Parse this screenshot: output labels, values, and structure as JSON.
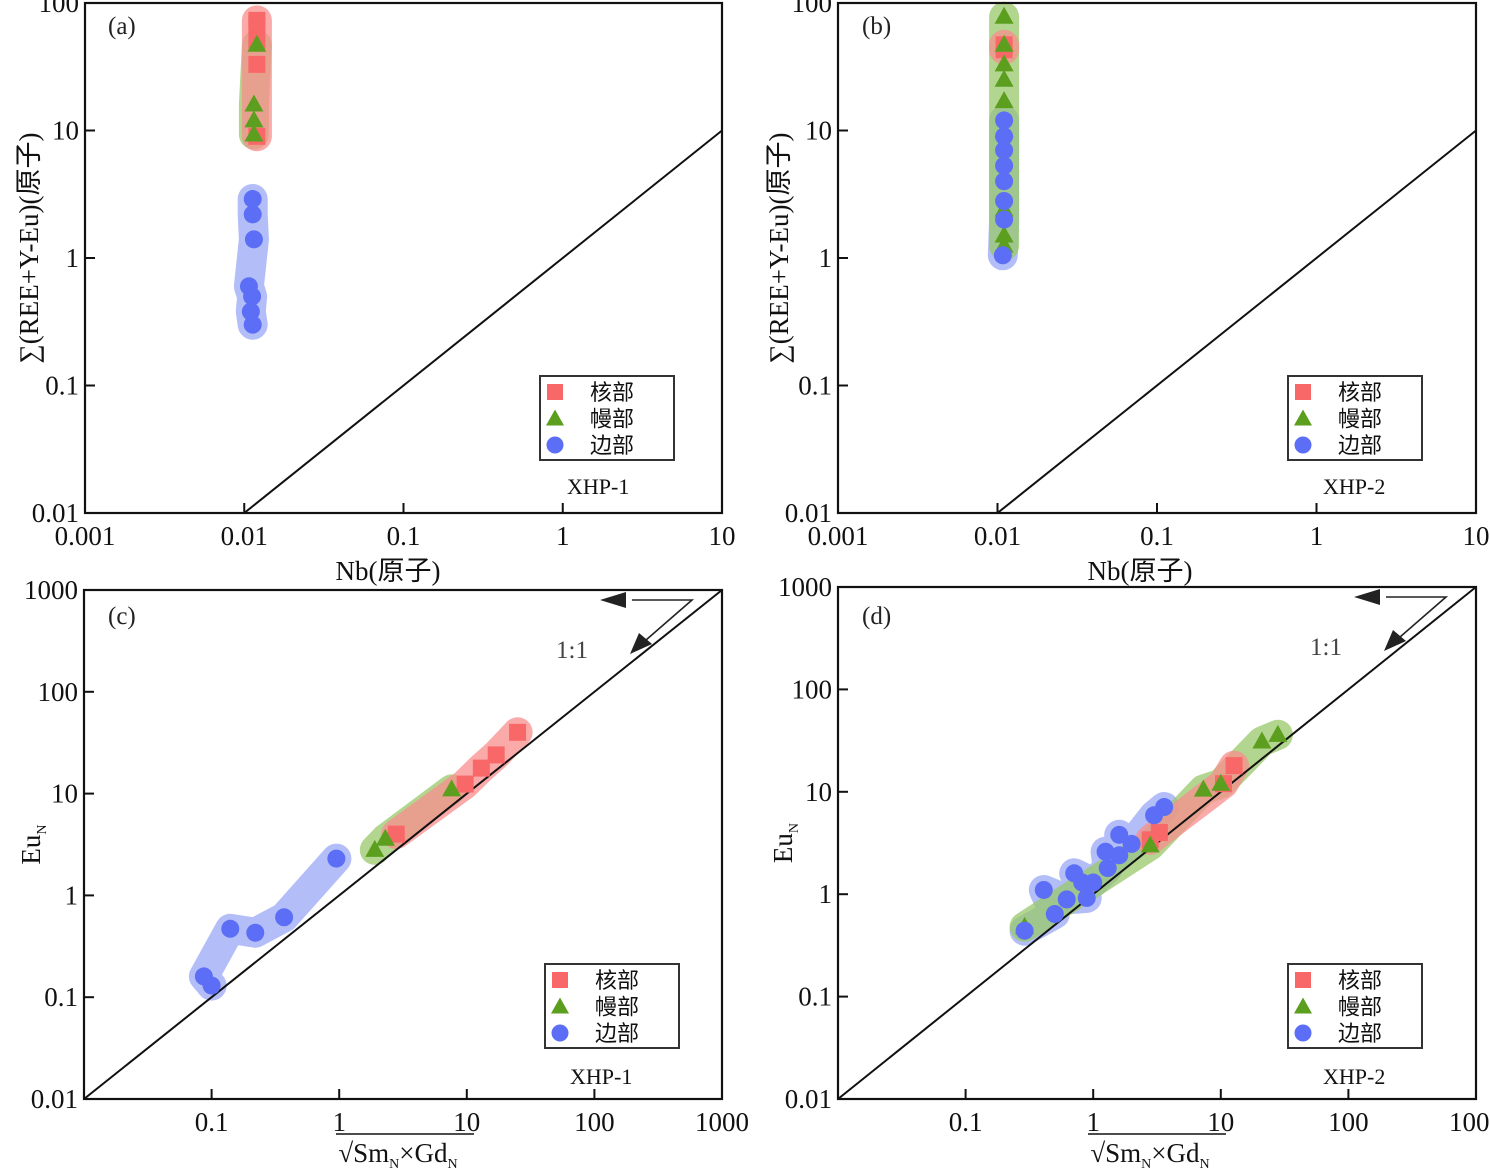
{
  "legend": {
    "items": [
      {
        "key": "core",
        "label": "核部",
        "marker": "square",
        "color": "#f96868"
      },
      {
        "key": "mantle",
        "label": "幔部",
        "marker": "triangle",
        "color": "#5c9e1e"
      },
      {
        "key": "rim",
        "label": "边部",
        "marker": "circle",
        "color": "#5b6ef5"
      }
    ]
  },
  "colors": {
    "core": "#f96868",
    "core_fill": "#f98e8e",
    "mantle": "#5c9e1e",
    "mantle_fill": "#98c86a",
    "rim": "#5b6ef5",
    "rim_fill": "#9aa8f5",
    "axis": "#111111"
  },
  "chart_data": [
    {
      "panel": "(a)",
      "type": "scatter",
      "sample": "XHP-1",
      "xlabel": "Nb(原子)",
      "ylabel": "∑(REE+Y-Eu)(原子)",
      "xscale": "log",
      "yscale": "log",
      "xlim": [
        0.001,
        10
      ],
      "ylim": [
        0.01,
        100
      ],
      "xticks": [
        "0.001",
        "0.01",
        "0.1",
        "1",
        "10"
      ],
      "yticks": [
        "0.01",
        "0.1",
        "1",
        "10",
        "100"
      ],
      "reference_line": "1:1",
      "legend_position": "bottom-right",
      "series": [
        {
          "name": "核部",
          "key": "core",
          "points": [
            [
              0.012,
              73
            ],
            [
              0.012,
              67
            ],
            [
              0.012,
              51
            ],
            [
              0.012,
              33
            ],
            [
              0.012,
              9
            ]
          ]
        },
        {
          "name": "幔部",
          "key": "mantle",
          "points": [
            [
              0.012,
              47
            ],
            [
              0.0115,
              16
            ],
            [
              0.0115,
              12
            ],
            [
              0.0115,
              9.3
            ]
          ]
        },
        {
          "name": "边部",
          "key": "rim",
          "points": [
            [
              0.0113,
              2.9
            ],
            [
              0.0113,
              2.2
            ],
            [
              0.0115,
              1.4
            ],
            [
              0.0107,
              0.6
            ],
            [
              0.0112,
              0.5
            ],
            [
              0.011,
              0.38
            ],
            [
              0.0113,
              0.3
            ]
          ]
        }
      ]
    },
    {
      "panel": "(b)",
      "type": "scatter",
      "sample": "XHP-2",
      "xlabel": "Nb(原子)",
      "ylabel": "∑(REE+Y-Eu)(原子)",
      "xscale": "log",
      "yscale": "log",
      "xlim": [
        0.001,
        10
      ],
      "ylim": [
        0.01,
        100
      ],
      "xticks": [
        "0.001",
        "0.01",
        "0.1",
        "1",
        "10"
      ],
      "yticks": [
        "0.01",
        "0.1",
        "1",
        "10",
        "100"
      ],
      "reference_line": "1:1",
      "legend_position": "bottom-right",
      "series": [
        {
          "name": "核部",
          "key": "core",
          "points": [
            [
              0.011,
              47
            ],
            [
              0.011,
              43
            ]
          ]
        },
        {
          "name": "幔部",
          "key": "mantle",
          "points": [
            [
              0.011,
              78
            ],
            [
              0.011,
              47
            ],
            [
              0.011,
              33
            ],
            [
              0.011,
              25
            ],
            [
              0.011,
              17
            ],
            [
              0.011,
              10
            ],
            [
              0.011,
              2.4
            ],
            [
              0.011,
              1.5
            ],
            [
              0.011,
              1.25
            ]
          ]
        },
        {
          "name": "边部",
          "key": "rim",
          "points": [
            [
              0.011,
              12
            ],
            [
              0.011,
              9
            ],
            [
              0.011,
              7
            ],
            [
              0.011,
              5.3
            ],
            [
              0.011,
              4
            ],
            [
              0.011,
              2.8
            ],
            [
              0.011,
              2
            ],
            [
              0.0108,
              1.05
            ]
          ]
        }
      ]
    },
    {
      "panel": "(c)",
      "type": "scatter",
      "sample": "XHP-1",
      "xlabel": "√Sm_N×Gd_N",
      "ylabel": "Eu_N",
      "xscale": "log",
      "yscale": "log",
      "xlim": [
        0.01,
        1000
      ],
      "ylim": [
        0.01,
        1000
      ],
      "xticks": [
        "0.1",
        "1",
        "10",
        "100",
        "1000"
      ],
      "yticks": [
        "0.01",
        "0.1",
        "1",
        "10",
        "100",
        "1000"
      ],
      "reference_line": "1:1",
      "annotation": "1:1",
      "legend_position": "bottom-right",
      "series": [
        {
          "name": "核部",
          "key": "core",
          "points": [
            [
              2.8,
              4.0
            ],
            [
              9.7,
              12.4
            ],
            [
              13,
              17.8
            ],
            [
              17,
              24
            ],
            [
              25,
              40
            ]
          ]
        },
        {
          "name": "幔部",
          "key": "mantle",
          "points": [
            [
              1.9,
              2.8
            ],
            [
              2.3,
              3.6
            ],
            [
              7.6,
              11
            ]
          ]
        },
        {
          "name": "边部",
          "key": "rim",
          "points": [
            [
              0.087,
              0.16
            ],
            [
              0.1,
              0.13
            ],
            [
              0.14,
              0.47
            ],
            [
              0.22,
              0.43
            ],
            [
              0.37,
              0.61
            ],
            [
              0.95,
              2.3
            ]
          ]
        }
      ]
    },
    {
      "panel": "(d)",
      "type": "scatter",
      "sample": "XHP-2",
      "xlabel": "√Sm_N×Gd_N",
      "ylabel": "Eu_N",
      "xscale": "log",
      "yscale": "log",
      "xlim": [
        0.01,
        1000
      ],
      "ylim": [
        0.01,
        1000
      ],
      "xticks": [
        "0.1",
        "1",
        "10",
        "100",
        "1000"
      ],
      "yticks": [
        "0.01",
        "0.1",
        "1",
        "10",
        "100",
        "1000"
      ],
      "reference_line": "1:1",
      "annotation": "1:1",
      "legend_position": "bottom-right",
      "series": [
        {
          "name": "核部",
          "key": "core",
          "points": [
            [
              2.8,
              3.4
            ],
            [
              3.3,
              4.0
            ],
            [
              10.5,
              12
            ],
            [
              12.7,
              18
            ]
          ]
        },
        {
          "name": "幔部",
          "key": "mantle",
          "points": [
            [
              0.29,
              0.48
            ],
            [
              2.8,
              3.0
            ],
            [
              7.3,
              10.5
            ],
            [
              10,
              12
            ],
            [
              21,
              31
            ],
            [
              28,
              36
            ]
          ]
        },
        {
          "name": "边部",
          "key": "rim",
          "points": [
            [
              0.29,
              0.44
            ],
            [
              0.41,
              1.1
            ],
            [
              0.5,
              0.64
            ],
            [
              0.62,
              0.89
            ],
            [
              0.71,
              1.6
            ],
            [
              0.82,
              1.3
            ],
            [
              0.89,
              0.92
            ],
            [
              1.0,
              1.3
            ],
            [
              1.25,
              2.6
            ],
            [
              1.3,
              1.8
            ],
            [
              1.6,
              2.4
            ],
            [
              1.6,
              3.8
            ],
            [
              2.0,
              3.1
            ],
            [
              3.0,
              5.9
            ],
            [
              3.6,
              7.1
            ]
          ]
        }
      ]
    }
  ]
}
